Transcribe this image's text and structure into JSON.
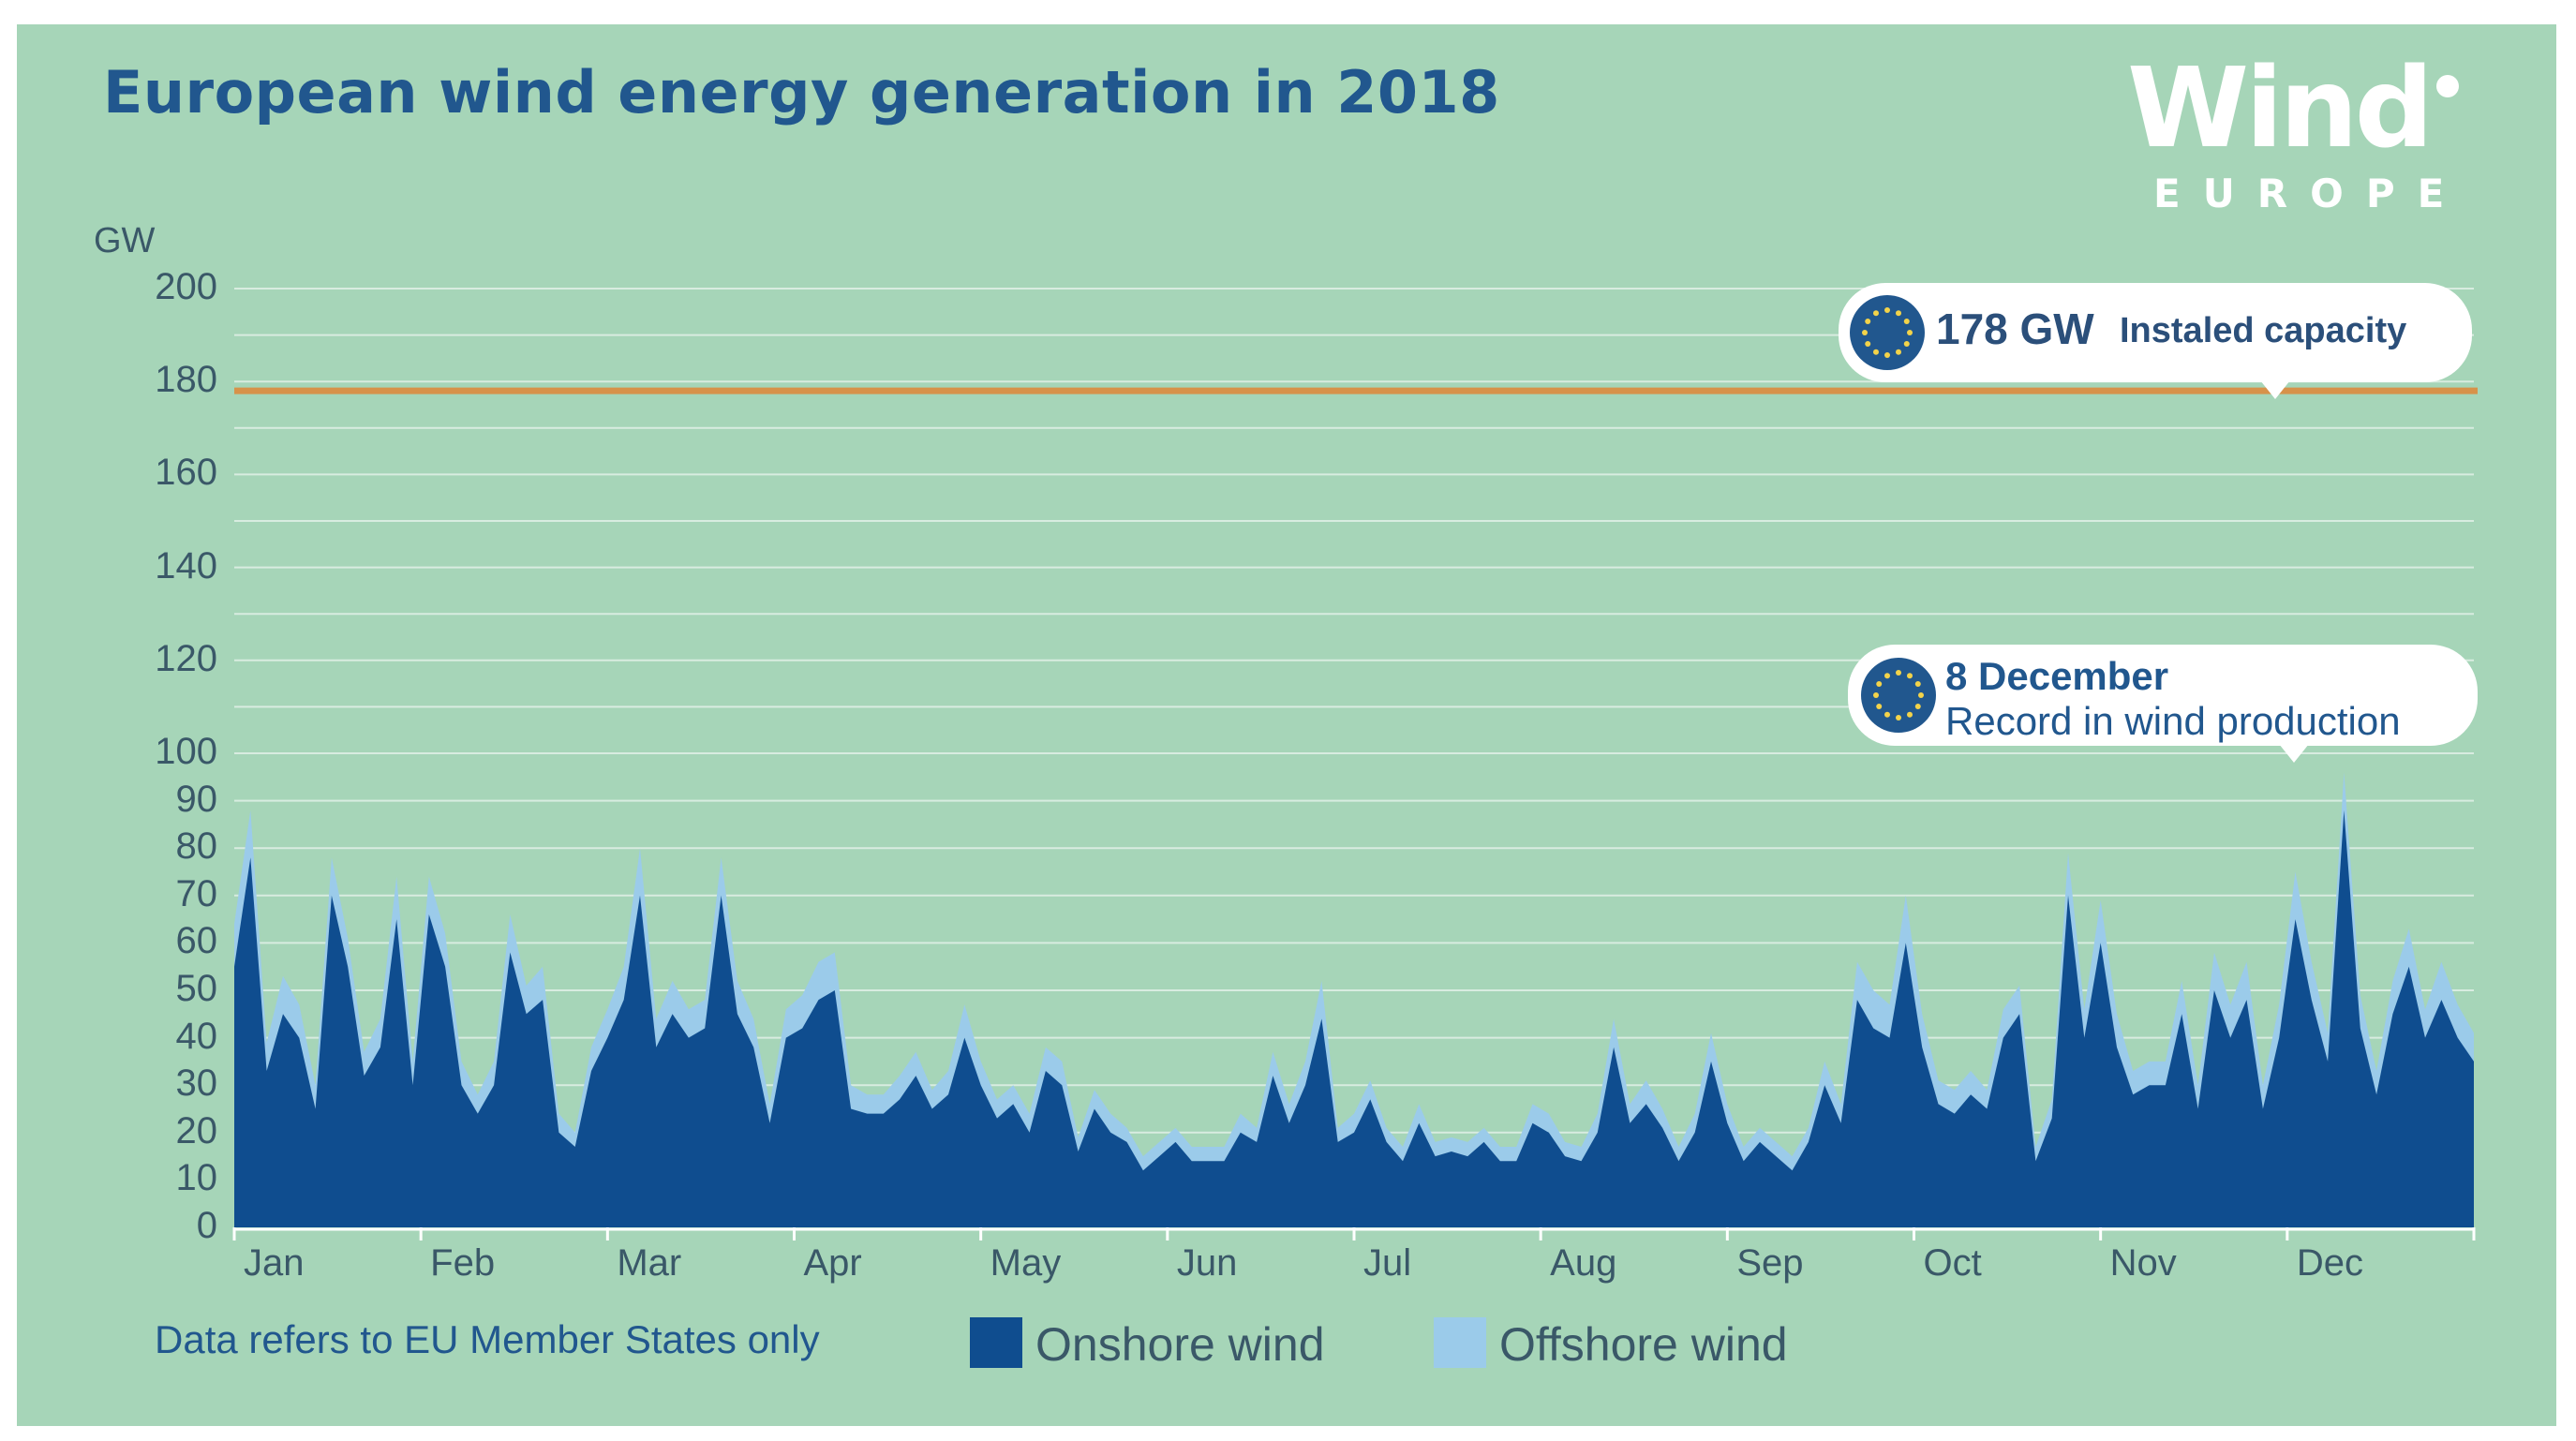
{
  "title": "European wind energy generation in 2018",
  "logo": {
    "word": "Wind",
    "sub": "EUROPE"
  },
  "annotations": {
    "capacity": {
      "value": "178 GW",
      "label": "Instaled capacity"
    },
    "record": {
      "date": "8 December",
      "label": "Record in wind production"
    }
  },
  "footnote": "Data refers to EU Member States only",
  "legend": {
    "onshore": "Onshore wind",
    "offshore": "Offshore wind"
  },
  "colors": {
    "background": "#a6d5b8",
    "onshore": "#0f4d8f",
    "offshore": "#9bcbea",
    "capacity_line": "#d7924a",
    "title": "#21578e"
  },
  "chart_data": {
    "type": "area",
    "title": "European wind energy generation in 2018",
    "ylabel": "GW",
    "xlabel": "",
    "y_ticks": [
      "0",
      "10",
      "20",
      "30",
      "40",
      "50",
      "60",
      "70",
      "80",
      "90",
      "100",
      "120",
      "140",
      "160",
      "180",
      "200"
    ],
    "y_scale_note": "axis is linear 0-100 in steps of 10, then 100-200 in steps of 20 with compressed spacing",
    "months": [
      "Jan",
      "Feb",
      "Mar",
      "Apr",
      "May",
      "Jun",
      "Jul",
      "Aug",
      "Sep",
      "Oct",
      "Nov",
      "Dec"
    ],
    "capacity_line_gw": 178,
    "record": {
      "date": "8 December",
      "value_gw": 95
    },
    "x_step_days": 5,
    "series": [
      {
        "name": "Onshore wind",
        "values": [
          55,
          78,
          33,
          45,
          40,
          25,
          70,
          55,
          32,
          38,
          65,
          30,
          66,
          55,
          30,
          24,
          30,
          58,
          45,
          48,
          20,
          17,
          33,
          40,
          48,
          70,
          38,
          45,
          40,
          42,
          70,
          45,
          38,
          22,
          40,
          42,
          48,
          50,
          25,
          24,
          24,
          27,
          32,
          25,
          28,
          40,
          30,
          23,
          26,
          20,
          33,
          30,
          16,
          25,
          20,
          18,
          12,
          15,
          18,
          14,
          14,
          14,
          20,
          18,
          32,
          22,
          30,
          44,
          18,
          20,
          27,
          18,
          14,
          22,
          15,
          16,
          15,
          18,
          14,
          14,
          22,
          20,
          15,
          14,
          20,
          38,
          22,
          26,
          21,
          14,
          20,
          35,
          22,
          14,
          18,
          15,
          12,
          18,
          30,
          22,
          48,
          42,
          40,
          60,
          38,
          26,
          24,
          28,
          25,
          40,
          45,
          14,
          23,
          70,
          40,
          60,
          38,
          28,
          30,
          30,
          45,
          25,
          50,
          40,
          48,
          25,
          40,
          65,
          48,
          35,
          88,
          42,
          28,
          45,
          55,
          40,
          48,
          40,
          35
        ]
      },
      {
        "name": "Offshore wind",
        "values": [
          9,
          10,
          6,
          8,
          7,
          5,
          8,
          6,
          5,
          6,
          9,
          5,
          8,
          7,
          5,
          4,
          5,
          8,
          6,
          7,
          4,
          3,
          5,
          6,
          7,
          10,
          6,
          7,
          6,
          6,
          8,
          7,
          6,
          4,
          6,
          7,
          8,
          8,
          5,
          4,
          4,
          5,
          5,
          4,
          5,
          7,
          5,
          4,
          4,
          4,
          5,
          5,
          3,
          4,
          4,
          3,
          3,
          3,
          3,
          3,
          3,
          3,
          4,
          3,
          5,
          4,
          5,
          8,
          3,
          4,
          4,
          3,
          3,
          4,
          3,
          3,
          3,
          3,
          3,
          3,
          4,
          4,
          3,
          3,
          4,
          6,
          4,
          5,
          4,
          3,
          4,
          6,
          4,
          3,
          3,
          3,
          3,
          3,
          5,
          4,
          8,
          8,
          7,
          10,
          7,
          5,
          5,
          5,
          4,
          6,
          6,
          3,
          4,
          9,
          6,
          9,
          7,
          5,
          5,
          5,
          7,
          5,
          8,
          7,
          8,
          5,
          7,
          10,
          8,
          6,
          8,
          7,
          5,
          7,
          8,
          6,
          8,
          7,
          6
        ]
      }
    ]
  }
}
